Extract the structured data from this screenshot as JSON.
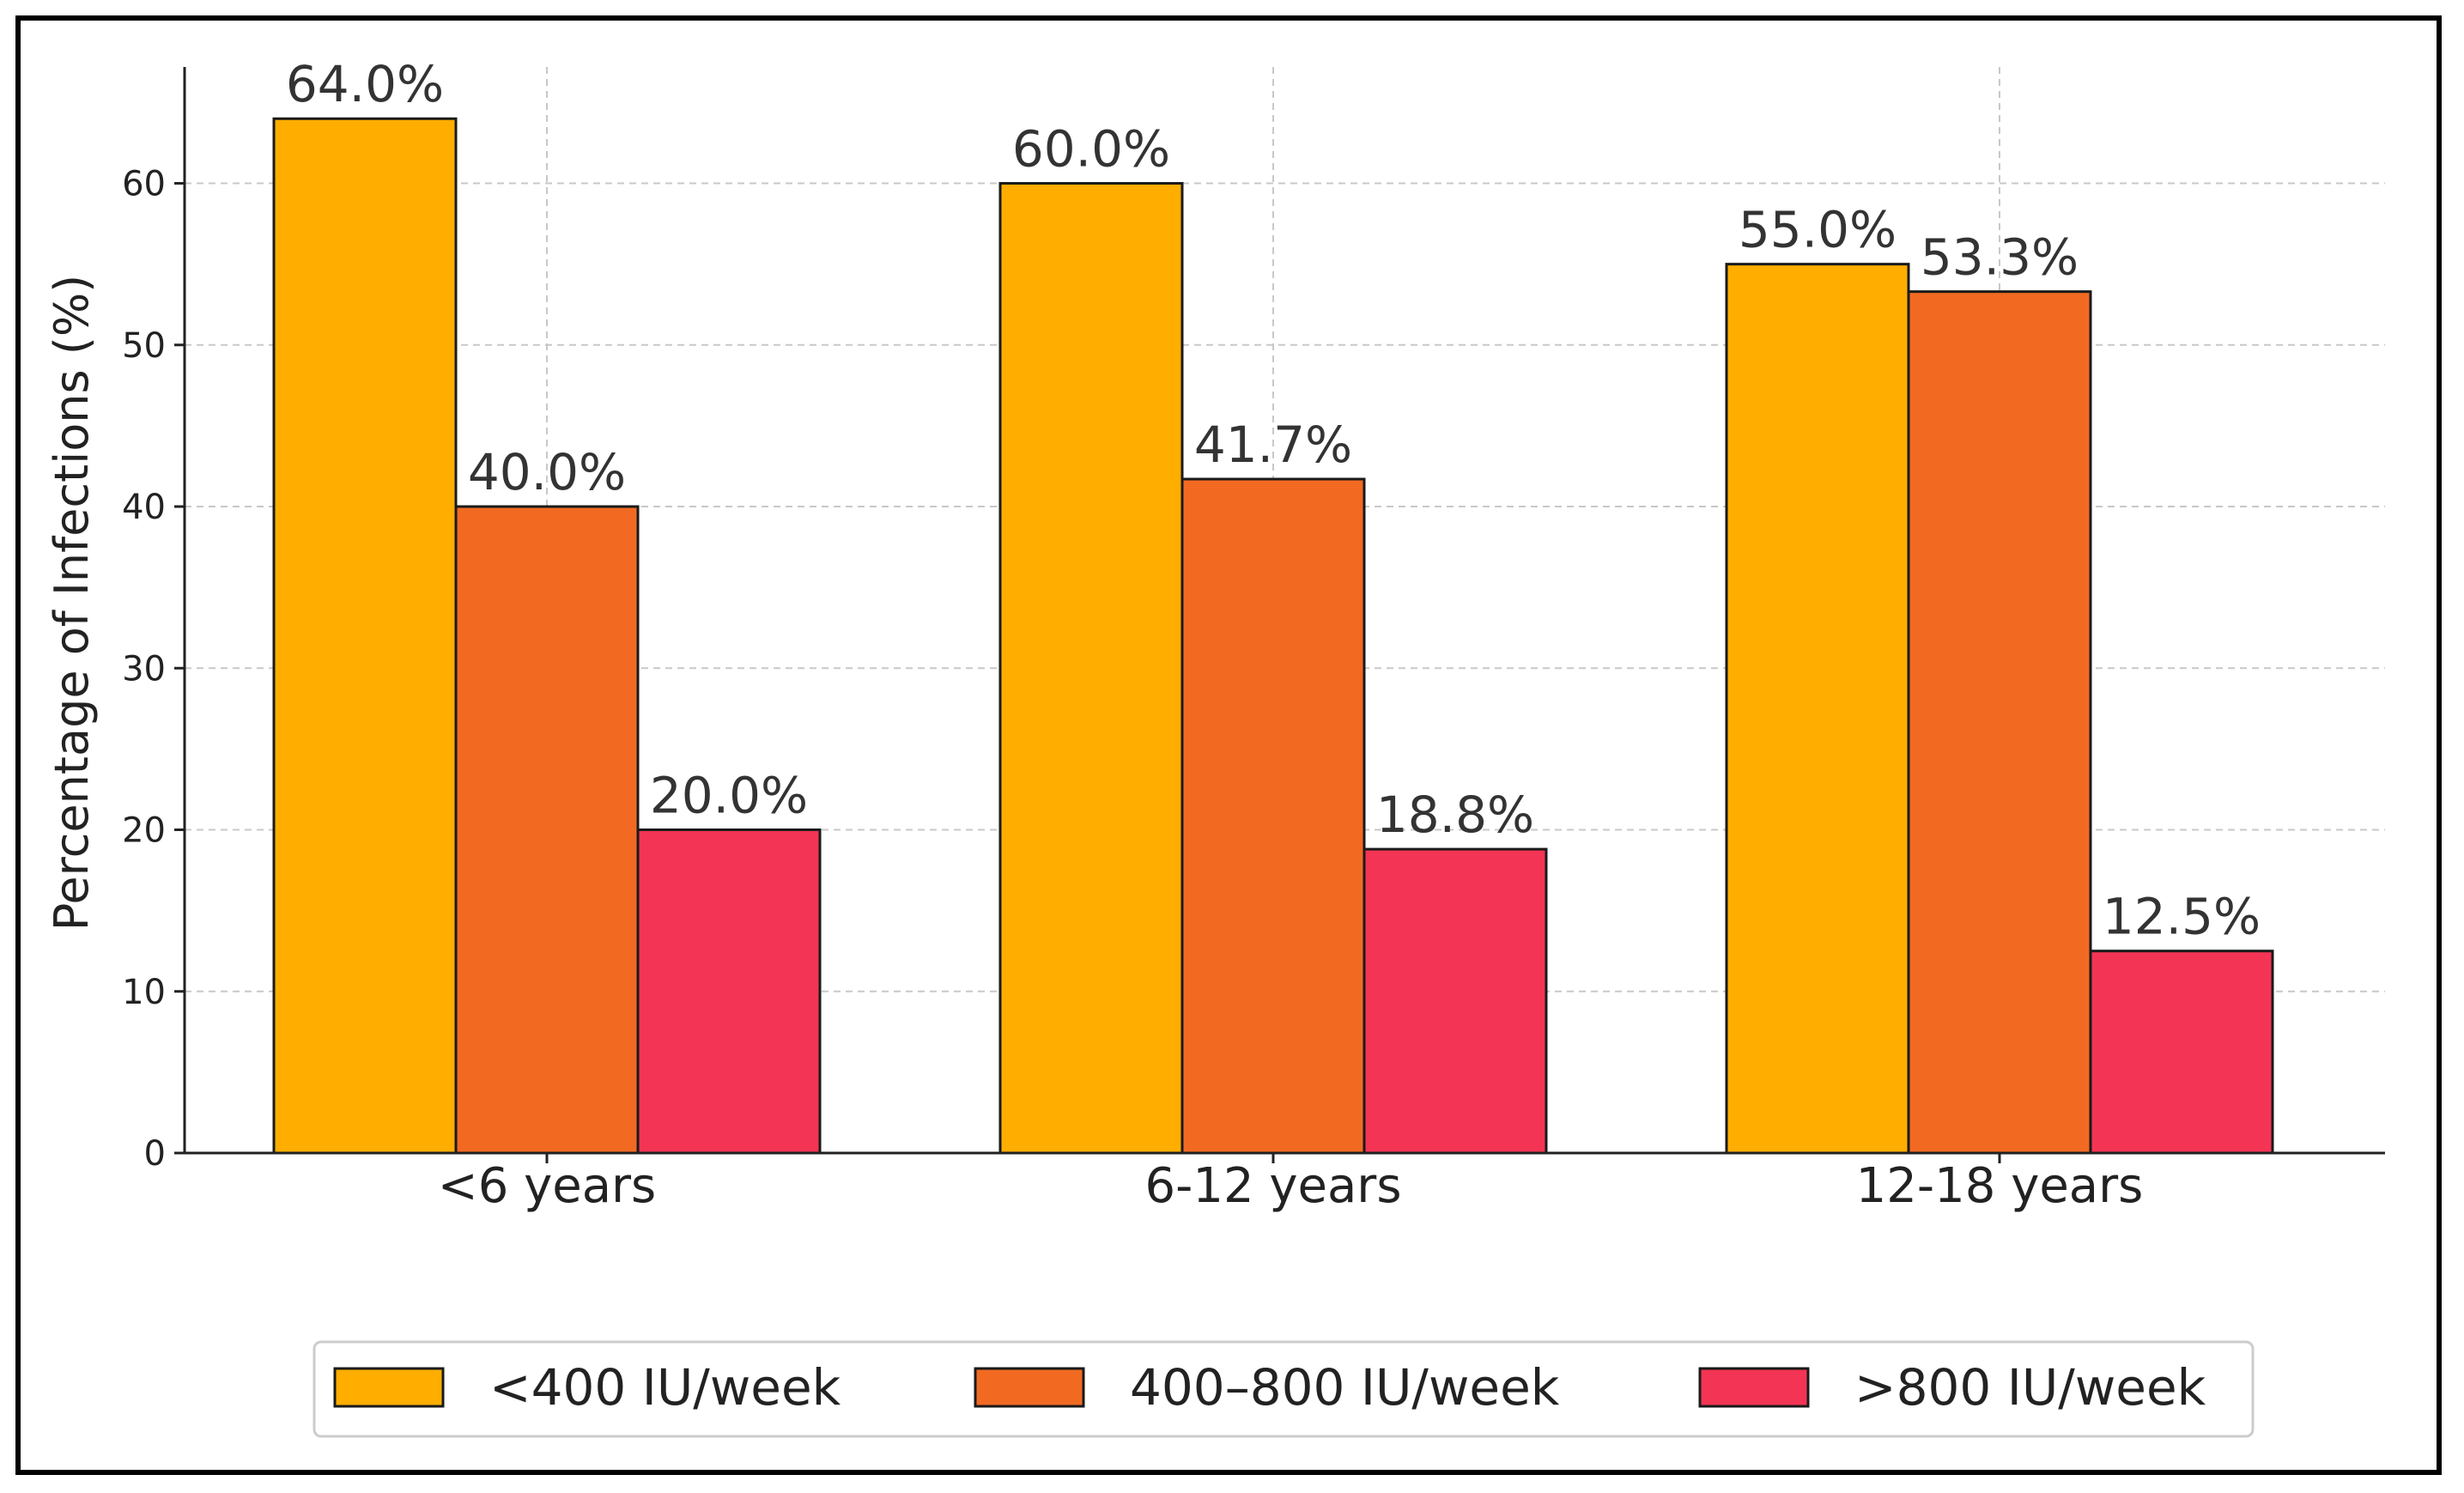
{
  "chart_data": {
    "type": "bar",
    "title": "",
    "xlabel": "",
    "ylabel": "Percentage of Infections (%)",
    "categories": [
      "<6 years",
      "6-12 years",
      "12-18 years"
    ],
    "series": [
      {
        "name": "<400 IU/week",
        "color": "#FFAE00",
        "values": [
          64.0,
          60.0,
          55.0
        ],
        "labels": [
          "64.0%",
          "60.0%",
          "55.0%"
        ]
      },
      {
        "name": "400–800 IU/week",
        "color": "#F26A22",
        "values": [
          40.0,
          41.7,
          53.3
        ],
        "labels": [
          "40.0%",
          "41.7%",
          "53.3%"
        ]
      },
      {
        "name": ">800 IU/week",
        "color": "#F43454",
        "values": [
          20.0,
          18.8,
          12.5
        ],
        "labels": [
          "20.0%",
          "18.8%",
          "12.5%"
        ]
      }
    ],
    "yticks": [
      0,
      10,
      20,
      30,
      40,
      50,
      60
    ],
    "ylim": [
      0,
      67.2
    ],
    "grid": true,
    "legend_position": "bottom"
  }
}
